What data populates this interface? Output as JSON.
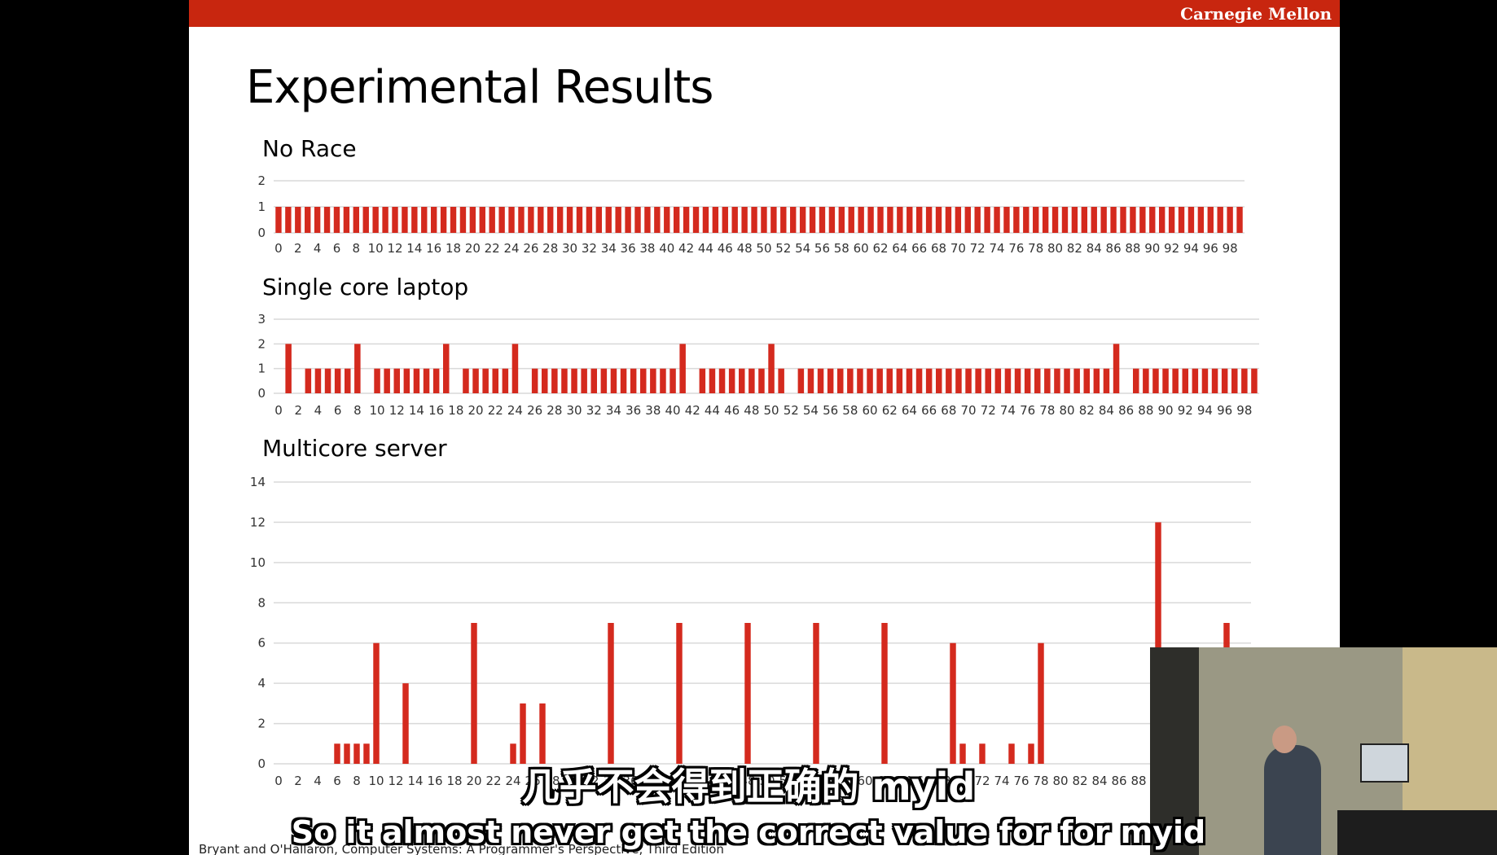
{
  "slide": {
    "brand": "Carnegie Mellon",
    "title": "Experimental Results",
    "footer": "Bryant and O'Hallaron, Computer Systems: A Programmer's Perspective, Third Edition"
  },
  "colors": {
    "bar": "#d42a1e",
    "brand_bar": "#c8260f",
    "grid": "#d9d9d9"
  },
  "chart_data": [
    {
      "type": "bar",
      "title": "No Race",
      "ylim": [
        0,
        2
      ],
      "yticks": [
        0,
        1,
        2
      ],
      "categories_count": 100,
      "xtick_step": 2,
      "values": [
        1,
        1,
        1,
        1,
        1,
        1,
        1,
        1,
        1,
        1,
        1,
        1,
        1,
        1,
        1,
        1,
        1,
        1,
        1,
        1,
        1,
        1,
        1,
        1,
        1,
        1,
        1,
        1,
        1,
        1,
        1,
        1,
        1,
        1,
        1,
        1,
        1,
        1,
        1,
        1,
        1,
        1,
        1,
        1,
        1,
        1,
        1,
        1,
        1,
        1,
        1,
        1,
        1,
        1,
        1,
        1,
        1,
        1,
        1,
        1,
        1,
        1,
        1,
        1,
        1,
        1,
        1,
        1,
        1,
        1,
        1,
        1,
        1,
        1,
        1,
        1,
        1,
        1,
        1,
        1,
        1,
        1,
        1,
        1,
        1,
        1,
        1,
        1,
        1,
        1,
        1,
        1,
        1,
        1,
        1,
        1,
        1,
        1,
        1,
        1
      ],
      "grid": true,
      "xlabel": "",
      "ylabel": ""
    },
    {
      "type": "bar",
      "title": "Single core laptop",
      "ylim": [
        0,
        3
      ],
      "yticks": [
        0,
        1,
        2,
        3
      ],
      "categories_count": 100,
      "xtick_step": 2,
      "values": [
        0,
        2,
        0,
        1,
        1,
        1,
        1,
        1,
        2,
        0,
        1,
        1,
        1,
        1,
        1,
        1,
        1,
        2,
        0,
        1,
        1,
        1,
        1,
        1,
        2,
        0,
        1,
        1,
        1,
        1,
        1,
        1,
        1,
        1,
        1,
        1,
        1,
        1,
        1,
        1,
        1,
        2,
        0,
        1,
        1,
        1,
        1,
        1,
        1,
        1,
        2,
        1,
        0,
        1,
        1,
        1,
        1,
        1,
        1,
        1,
        1,
        1,
        1,
        1,
        1,
        1,
        1,
        1,
        1,
        1,
        1,
        1,
        1,
        1,
        1,
        1,
        1,
        1,
        1,
        1,
        1,
        1,
        1,
        1,
        1,
        2,
        0,
        1,
        1,
        1,
        1,
        1,
        1,
        1,
        1,
        1,
        1,
        1,
        1,
        1
      ],
      "grid": true,
      "xlabel": "",
      "ylabel": ""
    },
    {
      "type": "bar",
      "title": "Multicore server",
      "ylim": [
        0,
        14
      ],
      "yticks": [
        0,
        2,
        4,
        6,
        8,
        10,
        12,
        14
      ],
      "categories_count": 100,
      "xtick_step": 2,
      "values": [
        0,
        0,
        0,
        0,
        0,
        0,
        1,
        1,
        1,
        1,
        6,
        0,
        0,
        4,
        0,
        0,
        0,
        0,
        0,
        0,
        7,
        0,
        0,
        0,
        1,
        3,
        0,
        3,
        0,
        0,
        0,
        0,
        0,
        0,
        7,
        0,
        0,
        0,
        0,
        0,
        0,
        7,
        0,
        0,
        0,
        0,
        0,
        0,
        7,
        0,
        0,
        0,
        0,
        0,
        0,
        7,
        0,
        0,
        0,
        0,
        0,
        0,
        7,
        0,
        0,
        0,
        0,
        0,
        0,
        6,
        1,
        0,
        1,
        0,
        0,
        1,
        0,
        1,
        6,
        0,
        0,
        0,
        0,
        0,
        0,
        0,
        0,
        0,
        0,
        0,
        12,
        0,
        0,
        0,
        0,
        0,
        0,
        7,
        0,
        0
      ],
      "grid": true,
      "xlabel": "",
      "ylabel": ""
    }
  ],
  "subtitles": {
    "zh": "几乎不会得到正确的 myid",
    "en": "So it almost never get the correct value for for myid"
  }
}
